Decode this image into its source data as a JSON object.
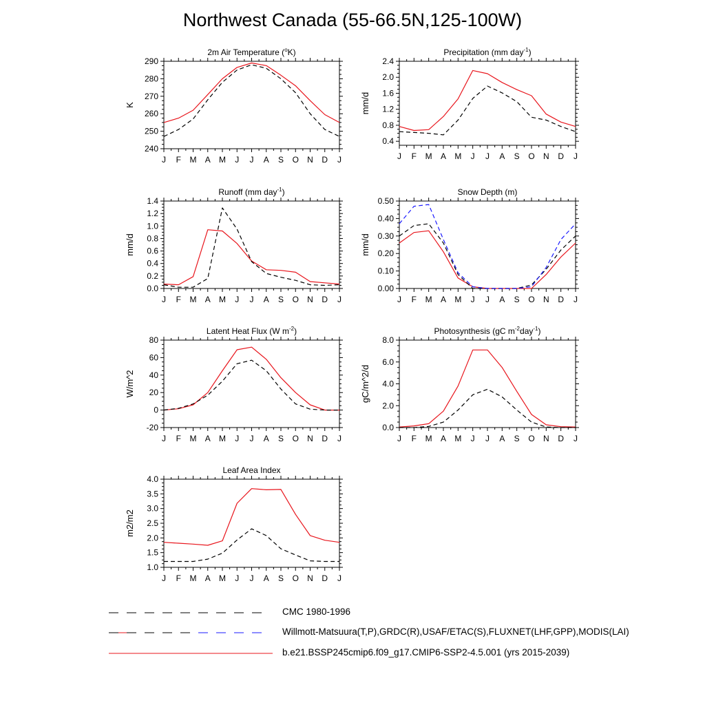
{
  "title": "Northwest Canada (55-66.5N,125-100W)",
  "months": [
    "J",
    "F",
    "M",
    "A",
    "M",
    "J",
    "J",
    "A",
    "S",
    "O",
    "N",
    "D",
    "J"
  ],
  "colors": {
    "model": "#e8141b",
    "obs": "#000000",
    "snow_obs": "#1a1aff"
  },
  "legend": [
    {
      "label": "CMC 1980-1996",
      "style": "dashed-black"
    },
    {
      "label": "Willmott-Matsuura(T,P),GRDC(R),USAF/ETAC(S),FLUXNET(LHF,GPP),MODIS(LAI)",
      "style": "dashed-multicolor"
    },
    {
      "label": "b.e21.BSSP245cmip6.f09_g17.CMIP6-SSP2-4.5.001 (yrs 2015-2039)",
      "style": "solid-red"
    }
  ],
  "chart_data": [
    {
      "type": "line",
      "title": "2m Air Temperature (°K)",
      "title_main": "2m Air Temperature (",
      "title_sup": "o",
      "title_tail": "K)",
      "ylabel": "K",
      "ylim": [
        240,
        290
      ],
      "yticks": [
        240,
        250,
        260,
        270,
        280,
        290
      ],
      "ytick_labels": [
        "240",
        "250",
        "260",
        "270",
        "280",
        "290"
      ],
      "series": [
        {
          "name": "b.e21.BSSP245cmip6.f09_g17.CMIP6-SSP2-4.5.001 (yrs 2015-2039)",
          "style": "solid-red",
          "values": [
            255,
            257.5,
            262,
            271,
            280,
            286.5,
            289,
            287.5,
            282,
            276,
            267.5,
            259.5,
            255
          ]
        },
        {
          "name": "Willmott-Matsuura(T,P),GRDC(R),USAF/ETAC(S),FLUXNET(LHF,GPP),MODIS(LAI)",
          "style": "dashed-black",
          "values": [
            247,
            251,
            257,
            268,
            278,
            285,
            288,
            286,
            280,
            272,
            260,
            251,
            247
          ]
        }
      ]
    },
    {
      "type": "line",
      "title": "Precipitation (mm day-1)",
      "title_main": "Precipitation (mm day",
      "title_sup": "-1",
      "title_tail": ")",
      "ylabel": "mm/d",
      "ylim": [
        0.3,
        2.4
      ],
      "yticks": [
        0.4,
        0.8,
        1.2,
        1.6,
        2.0,
        2.4
      ],
      "ytick_labels": [
        "0.4",
        "0.8",
        "1.2",
        "1.6",
        "2.0",
        "2.4"
      ],
      "series": [
        {
          "name": "b.e21.BSSP245cmip6.f09_g17.CMIP6-SSP2-4.5.001 (yrs 2015-2039)",
          "style": "solid-red",
          "values": [
            0.77,
            0.67,
            0.69,
            1.02,
            1.46,
            2.17,
            2.09,
            1.87,
            1.69,
            1.54,
            1.08,
            0.88,
            0.77
          ]
        },
        {
          "name": "Willmott-Matsuura(T,P),GRDC(R),USAF/ETAC(S),FLUXNET(LHF,GPP),MODIS(LAI)",
          "style": "dashed-black",
          "values": [
            0.64,
            0.62,
            0.6,
            0.56,
            0.93,
            1.47,
            1.78,
            1.61,
            1.39,
            1.0,
            0.93,
            0.77,
            0.64
          ]
        }
      ]
    },
    {
      "type": "line",
      "title": "Runoff (mm day-1)",
      "title_main": "Runoff (mm day",
      "title_sup": "-1",
      "title_tail": ")",
      "ylabel": "mm/d",
      "ylim": [
        0.0,
        1.4
      ],
      "yticks": [
        0.0,
        0.2,
        0.4,
        0.6,
        0.8,
        1.0,
        1.2,
        1.4
      ],
      "ytick_labels": [
        "0.0",
        "0.2",
        "0.4",
        "0.6",
        "0.8",
        "1.0",
        "1.2",
        "1.4"
      ],
      "series": [
        {
          "name": "b.e21.BSSP245cmip6.f09_g17.CMIP6-SSP2-4.5.001 (yrs 2015-2039)",
          "style": "solid-red",
          "values": [
            0.07,
            0.06,
            0.19,
            0.94,
            0.92,
            0.72,
            0.44,
            0.3,
            0.29,
            0.26,
            0.11,
            0.09,
            0.07
          ]
        },
        {
          "name": "Willmott-Matsuura(T,P),GRDC(R),USAF/ETAC(S),FLUXNET(LHF,GPP),MODIS(LAI)",
          "style": "dashed-black",
          "values": [
            0.06,
            0.02,
            0.02,
            0.16,
            1.29,
            0.95,
            0.43,
            0.24,
            0.18,
            0.13,
            0.06,
            0.05,
            0.06
          ]
        }
      ]
    },
    {
      "type": "line",
      "title": "Snow Depth (m)",
      "title_main": "Snow Depth (m)",
      "title_sup": "",
      "title_tail": "",
      "ylabel": "mm/d",
      "ylim": [
        0.0,
        0.5
      ],
      "yticks": [
        0.0,
        0.1,
        0.2,
        0.3,
        0.4,
        0.5
      ],
      "ytick_labels": [
        "0.00",
        "0.10",
        "0.20",
        "0.30",
        "0.40",
        "0.50"
      ],
      "series": [
        {
          "name": "b.e21.BSSP245cmip6.f09_g17.CMIP6-SSP2-4.5.001 (yrs 2015-2039)",
          "style": "solid-red",
          "values": [
            0.26,
            0.32,
            0.33,
            0.21,
            0.06,
            0.01,
            0.0,
            0.0,
            0.0,
            0.0,
            0.08,
            0.18,
            0.26
          ]
        },
        {
          "name": "CMC 1980-1996",
          "style": "dashed-black",
          "values": [
            0.3,
            0.36,
            0.37,
            0.26,
            0.08,
            0.0,
            0.0,
            0.0,
            0.0,
            0.02,
            0.11,
            0.22,
            0.3
          ]
        },
        {
          "name": "Willmott-Matsuura(T,P),GRDC(R),USAF/ETAC(S),FLUXNET(LHF,GPP),MODIS(LAI)",
          "style": "dashed-blue",
          "values": [
            0.37,
            0.47,
            0.48,
            0.28,
            0.09,
            0.01,
            0.0,
            0.0,
            0.0,
            0.01,
            0.12,
            0.28,
            0.37
          ]
        }
      ]
    },
    {
      "type": "line",
      "title": "Latent Heat Flux (W m-2)",
      "title_main": "Latent Heat Flux (W m",
      "title_sup": "-2",
      "title_tail": ")",
      "ylabel": "W/m^2",
      "ylim": [
        -20,
        80
      ],
      "yticks": [
        -20,
        0,
        20,
        40,
        60,
        80
      ],
      "ytick_labels": [
        "-20",
        "0",
        "20",
        "40",
        "60",
        "80"
      ],
      "series": [
        {
          "name": "b.e21.BSSP245cmip6.f09_g17.CMIP6-SSP2-4.5.001 (yrs 2015-2039)",
          "style": "solid-red",
          "values": [
            0,
            1.5,
            6,
            20,
            45,
            69,
            72,
            58,
            37,
            20,
            6,
            0,
            0
          ]
        },
        {
          "name": "Willmott-Matsuura(T,P),GRDC(R),USAF/ETAC(S),FLUXNET(LHF,GPP),MODIS(LAI)",
          "style": "dashed-black",
          "values": [
            0,
            2,
            7,
            17,
            33,
            53,
            57,
            45,
            24,
            7,
            1,
            0,
            0
          ]
        }
      ]
    },
    {
      "type": "line",
      "title": "Photosynthesis (gC m-2day-1)",
      "title_main": "Photosynthesis (gC m",
      "title_sup": "-2",
      "title_tail": "day",
      "title_sup2": "-1",
      "title_tail2": ")",
      "ylabel": "gC/m^2/d",
      "ylim": [
        0,
        8
      ],
      "yticks": [
        0,
        2,
        4,
        6,
        8
      ],
      "ytick_labels": [
        "0.0",
        "2.0",
        "4.0",
        "6.0",
        "8.0"
      ],
      "series": [
        {
          "name": "b.e21.BSSP245cmip6.f09_g17.CMIP6-SSP2-4.5.001 (yrs 2015-2039)",
          "style": "solid-red",
          "values": [
            0.05,
            0.15,
            0.35,
            1.5,
            3.8,
            7.1,
            7.1,
            5.5,
            3.3,
            1.2,
            0.25,
            0.08,
            0.05
          ]
        },
        {
          "name": "Willmott-Matsuura(T,P),GRDC(R),USAF/ETAC(S),FLUXNET(LHF,GPP),MODIS(LAI)",
          "style": "dashed-black",
          "values": [
            0.0,
            0.0,
            0.1,
            0.5,
            1.6,
            3.0,
            3.5,
            2.8,
            1.6,
            0.5,
            0.05,
            0.0,
            0.0
          ]
        }
      ]
    },
    {
      "type": "line",
      "title": "Leaf Area Index",
      "title_main": "Leaf Area Index",
      "title_sup": "",
      "title_tail": "",
      "ylabel": "m2/m2",
      "ylim": [
        1.0,
        4.0
      ],
      "yticks": [
        1.0,
        1.5,
        2.0,
        2.5,
        3.0,
        3.5,
        4.0
      ],
      "ytick_labels": [
        "1.0",
        "1.5",
        "2.0",
        "2.5",
        "3.0",
        "3.5",
        "4.0"
      ],
      "series": [
        {
          "name": "b.e21.BSSP245cmip6.f09_g17.CMIP6-SSP2-4.5.001 (yrs 2015-2039)",
          "style": "solid-red",
          "values": [
            1.85,
            1.82,
            1.79,
            1.75,
            1.9,
            3.18,
            3.68,
            3.64,
            3.65,
            2.8,
            2.08,
            1.92,
            1.85
          ]
        },
        {
          "name": "Willmott-Matsuura(T,P),GRDC(R),USAF/ETAC(S),FLUXNET(LHF,GPP),MODIS(LAI)",
          "style": "dashed-black",
          "values": [
            1.2,
            1.2,
            1.2,
            1.28,
            1.48,
            1.93,
            2.31,
            2.08,
            1.63,
            1.42,
            1.22,
            1.2,
            1.2
          ]
        }
      ]
    }
  ]
}
